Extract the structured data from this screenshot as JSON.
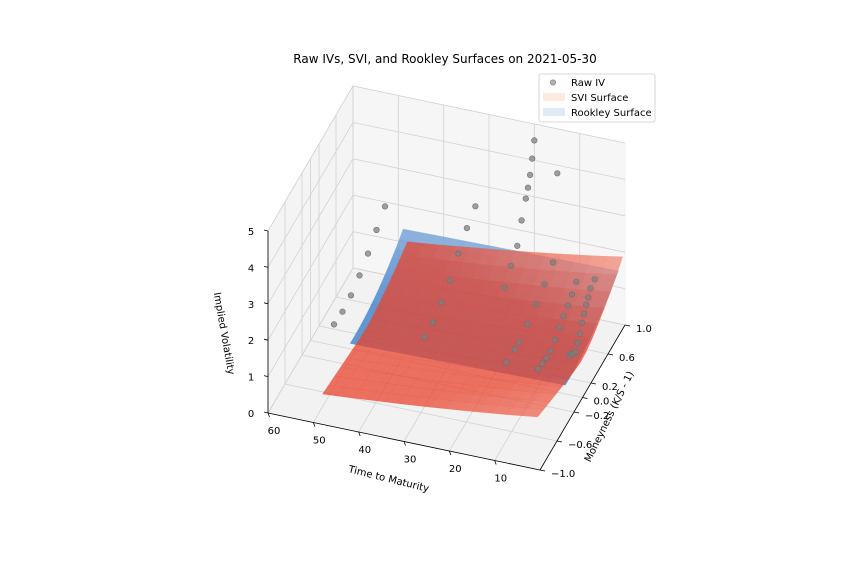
{
  "chart_data": {
    "type": "scatter",
    "title": "Raw IVs, SVI, and Rookley Surfaces on 2021-05-30",
    "xlabel": "Time to Maturity",
    "ylabel": "Moneyness (K/S - 1)",
    "zlabel": "Implied Volatility",
    "x_ticks": [
      "60",
      "50",
      "40",
      "30",
      "20",
      "10"
    ],
    "y_ticks": [
      "−1.0",
      "−0.6",
      "−0.2",
      "0.0",
      "0.2",
      "0.6",
      "1.0"
    ],
    "z_ticks": [
      "0",
      "1",
      "2",
      "3",
      "4",
      "5"
    ],
    "xlim": [
      0,
      60
    ],
    "ylim": [
      -1.0,
      1.0
    ],
    "zlim": [
      0,
      5
    ],
    "grid": true,
    "legend_position": "top-right",
    "legend": [
      "Raw IV",
      "SVI Surface",
      "Rookley Surface"
    ],
    "colors": {
      "raw_iv": "#7f7f7f",
      "svi_low": "#e8442e",
      "svi_high": "#fde6da",
      "rookley_low": "#3f7fc9",
      "rookley_high": "#dce8f5"
    },
    "series": [
      {
        "name": "Raw IV",
        "points": [
          {
            "x": 2,
            "y": -0.1,
            "z": 1.3
          },
          {
            "x": 2,
            "y": -0.05,
            "z": 1.25
          },
          {
            "x": 2,
            "y": 0.0,
            "z": 1.15
          },
          {
            "x": 2,
            "y": 0.05,
            "z": 1.1
          },
          {
            "x": 2,
            "y": 0.1,
            "z": 1.25
          },
          {
            "x": 2,
            "y": 0.15,
            "z": 1.4
          },
          {
            "x": 2,
            "y": 0.2,
            "z": 1.6
          },
          {
            "x": 2,
            "y": 0.25,
            "z": 1.75
          },
          {
            "x": 2,
            "y": 0.3,
            "z": 1.9
          },
          {
            "x": 2,
            "y": 0.35,
            "z": 2.0
          },
          {
            "x": 2,
            "y": 0.4,
            "z": 2.15
          },
          {
            "x": 2,
            "y": 0.5,
            "z": 2.2
          },
          {
            "x": 7,
            "y": -0.3,
            "z": 1.2
          },
          {
            "x": 7,
            "y": -0.2,
            "z": 1.15
          },
          {
            "x": 7,
            "y": -0.1,
            "z": 1.1
          },
          {
            "x": 7,
            "y": 0.0,
            "z": 1.1
          },
          {
            "x": 7,
            "y": 0.1,
            "z": 1.2
          },
          {
            "x": 7,
            "y": 0.2,
            "z": 1.35
          },
          {
            "x": 7,
            "y": 0.3,
            "z": 1.45
          },
          {
            "x": 7,
            "y": 0.4,
            "z": 1.55
          },
          {
            "x": 7,
            "y": 0.5,
            "z": 1.65
          },
          {
            "x": 7,
            "y": 0.6,
            "z": 1.8
          },
          {
            "x": 14,
            "y": -0.3,
            "z": 1.2
          },
          {
            "x": 14,
            "y": -0.1,
            "z": 1.15
          },
          {
            "x": 14,
            "y": 0.0,
            "z": 1.15
          },
          {
            "x": 14,
            "y": 0.2,
            "z": 1.25
          },
          {
            "x": 14,
            "y": 0.4,
            "z": 1.4
          },
          {
            "x": 14,
            "y": 0.6,
            "z": 1.55
          },
          {
            "x": 14,
            "y": 0.8,
            "z": 1.75
          },
          {
            "x": 14,
            "y": 0.9,
            "z": 4.0
          },
          {
            "x": 20,
            "y": 0.3,
            "z": 1.9
          },
          {
            "x": 20,
            "y": 0.45,
            "z": 2.2
          },
          {
            "x": 20,
            "y": 0.6,
            "z": 2.45
          },
          {
            "x": 20,
            "y": 0.7,
            "z": 2.95
          },
          {
            "x": 20,
            "y": 0.8,
            "z": 3.35
          },
          {
            "x": 20,
            "y": 0.85,
            "z": 3.55
          },
          {
            "x": 20,
            "y": 0.9,
            "z": 3.8
          },
          {
            "x": 20,
            "y": 0.95,
            "z": 4.15
          },
          {
            "x": 20,
            "y": 1.0,
            "z": 4.55
          },
          {
            "x": 33,
            "y": -0.2,
            "z": 1.2
          },
          {
            "x": 33,
            "y": 0.0,
            "z": 1.2
          },
          {
            "x": 33,
            "y": 0.2,
            "z": 1.35
          },
          {
            "x": 33,
            "y": 0.4,
            "z": 1.55
          },
          {
            "x": 33,
            "y": 0.6,
            "z": 1.9
          },
          {
            "x": 33,
            "y": 0.8,
            "z": 2.2
          },
          {
            "x": 33,
            "y": 1.0,
            "z": 2.4
          },
          {
            "x": 52,
            "y": -0.3,
            "z": 1.25
          },
          {
            "x": 52,
            "y": -0.1,
            "z": 1.2
          },
          {
            "x": 52,
            "y": 0.1,
            "z": 1.25
          },
          {
            "x": 52,
            "y": 0.3,
            "z": 1.4
          },
          {
            "x": 52,
            "y": 0.5,
            "z": 1.6
          },
          {
            "x": 52,
            "y": 0.7,
            "z": 1.85
          },
          {
            "x": 52,
            "y": 0.9,
            "z": 2.1
          }
        ]
      },
      {
        "name": "SVI Surface",
        "surface": "svi"
      },
      {
        "name": "Rookley Surface",
        "surface": "rookley"
      }
    ]
  }
}
